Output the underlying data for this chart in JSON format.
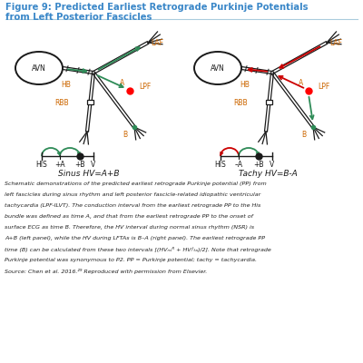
{
  "title_line1": "Figure 9: Predicted Earliest Retrograde Purkinje Potentials",
  "title_line2": "from Left Posterior Fascicles",
  "title_color": "#3A87C8",
  "background_color": "#ffffff",
  "left_panel_label": "Sinus HV=A+B",
  "right_panel_label": "Tachy HV=B-A",
  "green_color": "#2E8B57",
  "red_color": "#CC0000",
  "black_color": "#1a1a1a",
  "orange_color": "#CC6600",
  "axis_labels_left": [
    "HIS",
    "+A",
    "+B",
    "V"
  ],
  "axis_labels_right": [
    "HIS",
    "–A",
    "+B",
    "V"
  ],
  "caption_lines": [
    "Schematic demonstrations of the predicted earliest retrograde Purkinje potential (PP) from",
    "left fascicles during sinus rhythm and left posterior fascicle-related idiopathic ventricular",
    "tachycardia (LPF-ILVT). The conduction interval from the earliest retrograde PP to the His",
    "bundle was defined as time A, and that from the earliest retrograde PP to the onset of",
    "surface ECG as time B. Therefore, the HV interval during normal sinus rhythm (NSR) is",
    "A+B (left panel), while the HV during LFTAs is B–A (right panel). The earliest retrograde PP",
    "time (B) can be calculated from these two intervals [(HVₙₛᴿ + HVₗᶠₜₐ)/2]. Note that retrograde",
    "Purkinje potential was synonymous to P2. PP = Purkinje potential; tachy = tachycardia.",
    "Source: Chen et al. 2016.²⁹ Reproduced with permission from Elsevier."
  ]
}
